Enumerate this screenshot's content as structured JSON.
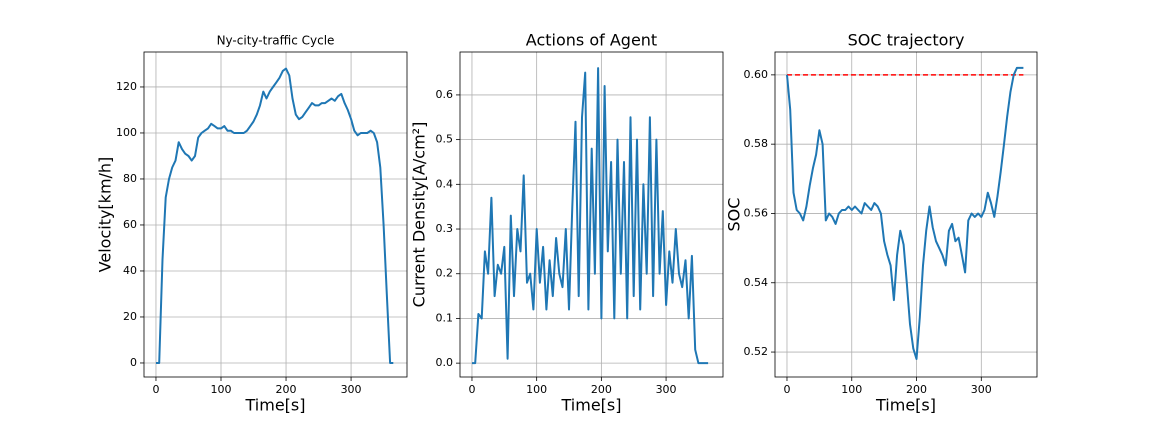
{
  "chart_data": [
    {
      "type": "line",
      "title": "Ny-city-traffic Cycle",
      "xlabel": "Time[s]",
      "ylabel": "Velocity[km/h]",
      "x": [
        0,
        5,
        10,
        15,
        20,
        25,
        30,
        35,
        40,
        45,
        50,
        55,
        60,
        65,
        70,
        75,
        80,
        85,
        90,
        95,
        100,
        105,
        110,
        115,
        120,
        125,
        130,
        135,
        140,
        145,
        150,
        155,
        160,
        165,
        170,
        175,
        180,
        185,
        190,
        195,
        200,
        205,
        210,
        215,
        220,
        225,
        230,
        235,
        240,
        245,
        250,
        255,
        260,
        265,
        270,
        275,
        280,
        285,
        290,
        295,
        300,
        305,
        310,
        315,
        320,
        325,
        330,
        335,
        340,
        345,
        350,
        355,
        360,
        365
      ],
      "series": [
        {
          "color": "#1f77b4",
          "values": [
            0,
            0,
            45,
            72,
            80,
            85,
            88,
            96,
            93,
            91,
            90,
            88,
            90,
            98,
            100,
            101,
            102,
            104,
            103,
            102,
            102,
            103,
            101,
            101,
            100,
            100,
            100,
            100,
            101,
            103,
            105,
            108,
            112,
            118,
            115,
            118,
            120,
            122,
            124,
            127,
            128,
            125,
            115,
            108,
            106,
            107,
            109,
            111,
            113,
            112,
            112,
            113,
            113,
            114,
            115,
            114,
            116,
            117,
            113,
            110,
            106,
            101,
            99,
            100,
            100,
            100,
            101,
            100,
            96,
            85,
            60,
            30,
            0,
            0
          ]
        }
      ],
      "xlim": [
        -18.4,
        386
      ],
      "xticks": [
        0,
        100,
        200,
        300
      ],
      "ylim": [
        -6.1,
        135.2
      ],
      "yticks": [
        0,
        20,
        40,
        60,
        80,
        100,
        120
      ],
      "grid": true
    },
    {
      "type": "line",
      "title": "Actions of Agent",
      "xlabel": "Time[s]",
      "ylabel": "Current Density[A/cm²]",
      "x": [
        0,
        5,
        10,
        15,
        20,
        25,
        30,
        35,
        40,
        45,
        50,
        55,
        60,
        65,
        70,
        75,
        80,
        85,
        90,
        95,
        100,
        105,
        110,
        115,
        120,
        125,
        130,
        135,
        140,
        145,
        150,
        155,
        160,
        165,
        170,
        175,
        180,
        185,
        190,
        195,
        200,
        205,
        210,
        215,
        220,
        225,
        230,
        235,
        240,
        245,
        250,
        255,
        260,
        265,
        270,
        275,
        280,
        285,
        290,
        295,
        300,
        305,
        310,
        315,
        320,
        325,
        330,
        335,
        340,
        345,
        350,
        355,
        360,
        365
      ],
      "series": [
        {
          "color": "#1f77b4",
          "values": [
            0,
            0,
            0.11,
            0.1,
            0.25,
            0.2,
            0.37,
            0.15,
            0.22,
            0.2,
            0.26,
            0.01,
            0.33,
            0.15,
            0.3,
            0.25,
            0.42,
            0.18,
            0.2,
            0.12,
            0.3,
            0.18,
            0.26,
            0.12,
            0.23,
            0.15,
            0.28,
            0.2,
            0.17,
            0.3,
            0.12,
            0.35,
            0.54,
            0.15,
            0.55,
            0.65,
            0.12,
            0.48,
            0.2,
            0.66,
            0.1,
            0.62,
            0.25,
            0.45,
            0.1,
            0.5,
            0.2,
            0.45,
            0.1,
            0.55,
            0.15,
            0.5,
            0.12,
            0.4,
            0.2,
            0.55,
            0.15,
            0.5,
            0.2,
            0.34,
            0.13,
            0.25,
            0.18,
            0.3,
            0.2,
            0.17,
            0.23,
            0.1,
            0.24,
            0.03,
            0,
            0,
            0,
            0
          ]
        }
      ],
      "xlim": [
        -18.5,
        388
      ],
      "xticks": [
        0,
        100,
        200,
        300
      ],
      "ylim": [
        -0.031,
        0.696
      ],
      "yticks": [
        {
          "value": 0,
          "label": "0.0"
        },
        0.1,
        0.2,
        0.3,
        0.4,
        0.5,
        0.6
      ],
      "grid": true
    },
    {
      "type": "line",
      "title": "SOC trajectory",
      "xlabel": "Time[s]",
      "ylabel": "SOC",
      "x": [
        0,
        5,
        10,
        15,
        20,
        25,
        30,
        35,
        40,
        45,
        50,
        55,
        60,
        65,
        70,
        75,
        80,
        85,
        90,
        95,
        100,
        105,
        110,
        115,
        120,
        125,
        130,
        135,
        140,
        145,
        150,
        155,
        160,
        165,
        170,
        175,
        180,
        185,
        190,
        195,
        200,
        205,
        210,
        215,
        220,
        225,
        230,
        235,
        240,
        245,
        250,
        255,
        260,
        265,
        270,
        275,
        280,
        285,
        290,
        295,
        300,
        305,
        310,
        315,
        320,
        325,
        330,
        335,
        340,
        345,
        350,
        355,
        360,
        365
      ],
      "series": [
        {
          "color": "#1f77b4",
          "values": [
            0.6,
            0.59,
            0.566,
            0.561,
            0.56,
            0.558,
            0.562,
            0.568,
            0.573,
            0.577,
            0.584,
            0.58,
            0.558,
            0.56,
            0.559,
            0.557,
            0.56,
            0.561,
            0.561,
            0.562,
            0.561,
            0.562,
            0.561,
            0.56,
            0.563,
            0.562,
            0.561,
            0.563,
            0.562,
            0.56,
            0.552,
            0.548,
            0.545,
            0.535,
            0.548,
            0.555,
            0.551,
            0.54,
            0.528,
            0.521,
            0.518,
            0.53,
            0.545,
            0.555,
            0.562,
            0.556,
            0.552,
            0.55,
            0.548,
            0.545,
            0.555,
            0.557,
            0.552,
            0.553,
            0.548,
            0.543,
            0.558,
            0.56,
            0.559,
            0.56,
            0.559,
            0.561,
            0.566,
            0.563,
            0.559,
            0.565,
            0.572,
            0.58,
            0.588,
            0.595,
            0.6,
            0.602,
            0.602,
            0.602
          ]
        }
      ],
      "hlines": [
        {
          "y": 0.6,
          "color": "#ff0000",
          "dashed": true
        }
      ],
      "xlim": [
        -18.5,
        386
      ],
      "xticks": [
        0,
        100,
        200,
        300
      ],
      "ylim": [
        0.5128,
        0.6066
      ],
      "yticks": [
        0.52,
        0.54,
        0.56,
        0.58,
        {
          "value": 0.6,
          "label": "0.60"
        }
      ],
      "grid": true
    }
  ]
}
